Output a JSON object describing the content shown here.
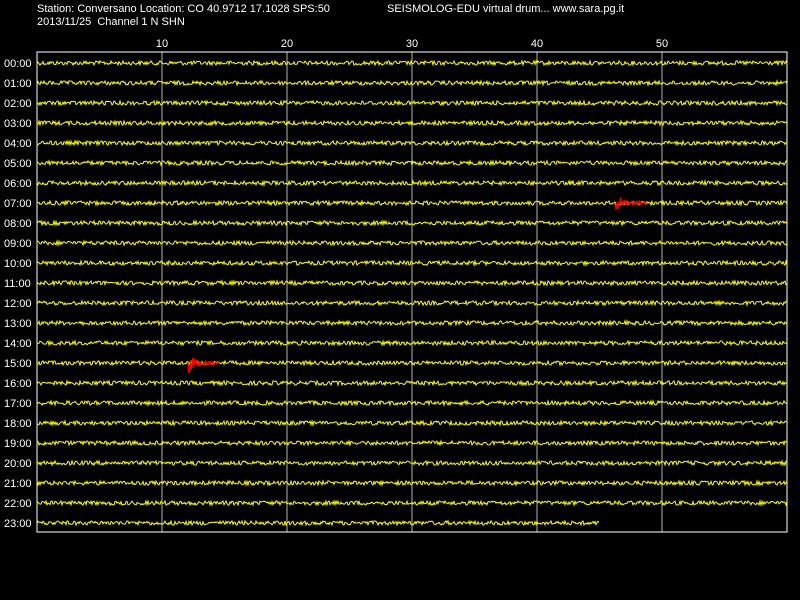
{
  "header": {
    "station_line": "Station: Conversano Location: CO 40.9712 17.1028 SPS:50",
    "date_channel": "2013/11/25  Channel 1 N SHN",
    "brand": "SEISMOLOG-EDU virtual drum... www.sara.pg.it"
  },
  "colors": {
    "background": "#000000",
    "trace": "#ffff00",
    "event": "#ff0000",
    "grid": "#ffffff",
    "text": "#ffffff"
  },
  "chart_data": {
    "type": "line",
    "title": "",
    "xlabel": "",
    "ylabel": "",
    "xlim": [
      0,
      60
    ],
    "x_ticks": [
      10,
      20,
      30,
      40,
      50
    ],
    "grid": true,
    "rows": [
      "00:00",
      "01:00",
      "02:00",
      "03:00",
      "04:00",
      "05:00",
      "06:00",
      "07:00",
      "08:00",
      "09:00",
      "10:00",
      "11:00",
      "12:00",
      "13:00",
      "14:00",
      "15:00",
      "16:00",
      "17:00",
      "18:00",
      "19:00",
      "20:00",
      "21:00",
      "22:00",
      "23:00"
    ],
    "last_row_end_minute": 45,
    "events": [
      {
        "row": "07:00",
        "start_minute": 46.2,
        "end_minute": 48.8
      },
      {
        "row": "15:00",
        "start_minute": 12.1,
        "end_minute": 14.6
      }
    ]
  }
}
